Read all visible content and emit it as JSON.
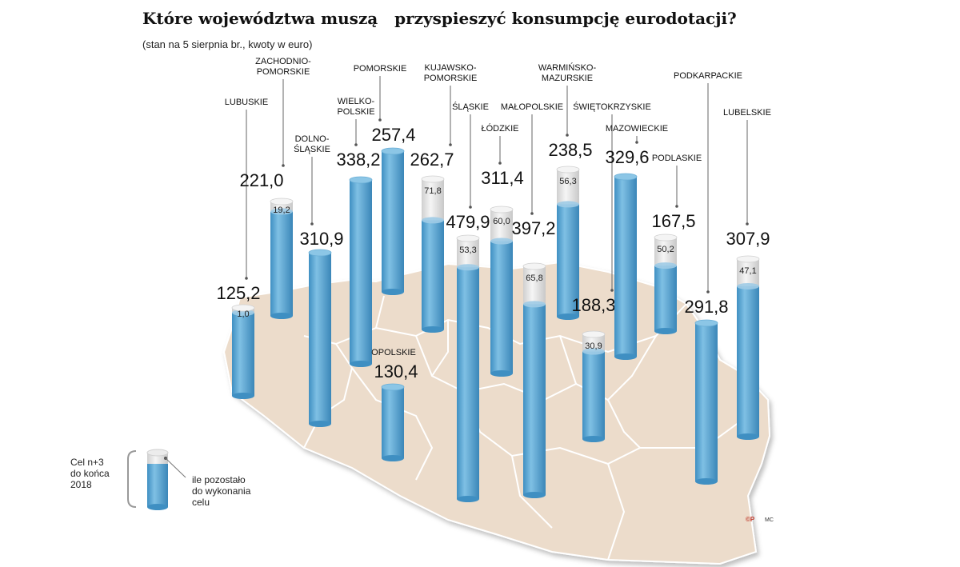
{
  "header": {
    "title": "Które województwa muszą   przyspieszyć konsumpcję eurodotacji?",
    "subtitle": "(stan na 5 sierpnia br., kwoty w euro)"
  },
  "chart_data": {
    "type": "bar",
    "categories": [
      "LUBUSKIE",
      "ZACHODNIO-POMORSKIE",
      "DOLNO-ŚLĄSKIE",
      "WIELKO-POLSKIE",
      "POMORSKIE",
      "OPOLSKIE",
      "KUJAWSKO-POMORSKIE",
      "ŚLĄSKIE",
      "ŁÓDZKIE",
      "MAŁOPOLSKIE",
      "WARMIŃSKO-MAZURSKIE",
      "ŚWIĘTOKRZYSKIE",
      "MAZOWIECKIE",
      "PODLASKIE",
      "PODKARPACKIE",
      "LUBELSKIE"
    ],
    "series": [
      {
        "name": "Cel n+3 do końca 2018 r.",
        "values": [
          "125,2",
          "221,0",
          "310,9",
          "338,2",
          "257,4",
          "130,4",
          "262,7",
          "479,9",
          "311,4",
          "397,2",
          "238,5",
          "188,3",
          "329,6",
          "167,5",
          "291,8",
          "307,9"
        ]
      },
      {
        "name": "ile pozostało do wykonania celu",
        "values": [
          "1,0",
          "19,2",
          null,
          null,
          null,
          null,
          "71,8",
          "53,3",
          "60,0",
          "65,8",
          "56,3",
          "30,9",
          null,
          "50,2",
          null,
          "47,1"
        ]
      }
    ],
    "legend": {
      "total_label": "Cel n+3 do końca 2018 r.",
      "remaining_label": "ile pozostało do wykonania celu",
      "placement": "bottom-left"
    },
    "colors": {
      "bar": "#5ba3d0",
      "remaining": "#e6e6e6",
      "map": "#ecdccb",
      "map_border": "#ffffff"
    }
  },
  "credit": {
    "logo": "©P",
    "author": "MC"
  }
}
